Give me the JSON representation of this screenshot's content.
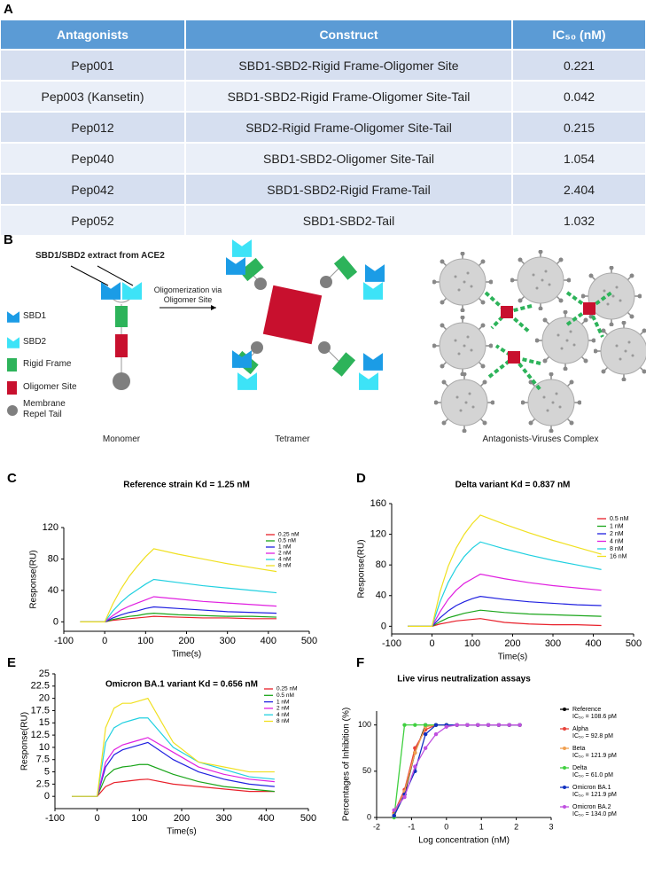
{
  "table": {
    "label": "A",
    "headers": [
      "Antagonists",
      "Construct",
      "IC₅₀ (nM)"
    ],
    "rows": [
      [
        "Pep001",
        "SBD1-SBD2-Rigid Frame-Oligomer Site",
        "0.221"
      ],
      [
        "Pep003 (Kansetin)",
        "SBD1-SBD2-Rigid Frame-Oligomer Site-Tail",
        "0.042"
      ],
      [
        "Pep012",
        "SBD2-Rigid Frame-Oligomer Site-Tail",
        "0.215"
      ],
      [
        "Pep040",
        "SBD1-SBD2-Oligomer Site-Tail",
        "1.054"
      ],
      [
        "Pep042",
        "SBD1-SBD2-Rigid Frame-Tail",
        "2.404"
      ],
      [
        "Pep052",
        "SBD1-SBD2-Tail",
        "1.032"
      ]
    ]
  },
  "diagram": {
    "label": "B",
    "callout": "SBD1/SBD2 extract from ACE2",
    "legend": [
      "SBD1",
      "SBD2",
      "Rigid Frame",
      "Oligomer Site",
      "Membrane Repel Tail"
    ],
    "arrow_label": "Oligomerization via Oligomer Site",
    "captions": [
      "Monomer",
      "Tetramer",
      "Antagonists-Viruses Complex"
    ]
  },
  "chart_data": [
    {
      "type": "line",
      "label": "C",
      "title": "Reference strain Kd = 1.25 nM",
      "x_label": "Time(s)",
      "y_label": "Response(RU)",
      "x": [
        -60,
        0,
        20,
        40,
        60,
        80,
        100,
        120,
        180,
        240,
        300,
        360,
        420
      ],
      "xlim": [
        -100,
        500
      ],
      "xticks": [
        -100,
        0,
        100,
        200,
        300,
        400,
        500
      ],
      "ylim": [
        -12,
        120
      ],
      "yticks": [
        0,
        40,
        80,
        120
      ],
      "series": [
        {
          "name": "0.25 nM",
          "color": "#e8202a",
          "values": [
            0,
            0,
            2,
            3,
            4,
            5,
            6,
            7,
            6,
            5,
            5,
            4,
            4
          ]
        },
        {
          "name": "0.5 nM",
          "color": "#1aa51a",
          "values": [
            0,
            0,
            3,
            5,
            7,
            8,
            10,
            11,
            9,
            8,
            7,
            7,
            6
          ]
        },
        {
          "name": "1 nM",
          "color": "#2020e0",
          "values": [
            0,
            0,
            5,
            9,
            12,
            14,
            17,
            19,
            17,
            15,
            13,
            12,
            11
          ]
        },
        {
          "name": "2 nM",
          "color": "#e020e0",
          "values": [
            0,
            0,
            8,
            15,
            20,
            24,
            28,
            32,
            29,
            26,
            24,
            22,
            20
          ]
        },
        {
          "name": "4 nM",
          "color": "#20d0e0",
          "values": [
            0,
            0,
            14,
            25,
            34,
            41,
            48,
            54,
            50,
            46,
            43,
            40,
            37
          ]
        },
        {
          "name": "8 nM",
          "color": "#f0e020",
          "values": [
            0,
            0,
            23,
            42,
            58,
            71,
            83,
            93,
            86,
            80,
            74,
            69,
            64
          ]
        }
      ]
    },
    {
      "type": "line",
      "label": "D",
      "title": "Delta variant Kd = 0.837 nM",
      "x_label": "Time(s)",
      "y_label": "Response(RU)",
      "x": [
        -60,
        0,
        20,
        40,
        60,
        80,
        100,
        120,
        180,
        240,
        300,
        360,
        420
      ],
      "xlim": [
        -100,
        500
      ],
      "xticks": [
        -100,
        0,
        100,
        200,
        300,
        400,
        500
      ],
      "ylim": [
        -10,
        160
      ],
      "yticks": [
        0,
        40,
        80,
        120,
        160
      ],
      "series": [
        {
          "name": "0.5 nM",
          "color": "#e8202a",
          "values": [
            0,
            0,
            3,
            5,
            7,
            8,
            9,
            10,
            5,
            3,
            2,
            2,
            1
          ]
        },
        {
          "name": "1 nM",
          "color": "#1aa51a",
          "values": [
            0,
            0,
            6,
            11,
            14,
            17,
            19,
            21,
            18,
            16,
            15,
            14,
            13
          ]
        },
        {
          "name": "2 nM",
          "color": "#2020e0",
          "values": [
            0,
            0,
            11,
            20,
            27,
            32,
            36,
            39,
            35,
            32,
            30,
            28,
            27
          ]
        },
        {
          "name": "4 nM",
          "color": "#e020e0",
          "values": [
            0,
            0,
            19,
            35,
            47,
            56,
            62,
            68,
            62,
            57,
            53,
            50,
            47
          ]
        },
        {
          "name": "8 nM",
          "color": "#20d0e0",
          "values": [
            0,
            0,
            32,
            57,
            76,
            91,
            102,
            110,
            101,
            93,
            86,
            80,
            74
          ]
        },
        {
          "name": "16 nM",
          "color": "#f0e020",
          "values": [
            0,
            0,
            45,
            78,
            102,
            120,
            134,
            145,
            133,
            122,
            112,
            103,
            94
          ]
        }
      ]
    },
    {
      "type": "line",
      "label": "E",
      "title": "Omicron BA.1 variant Kd = 0.656 nM",
      "x_label": "Time(s)",
      "y_label": "Response(RU)",
      "x": [
        -60,
        0,
        20,
        40,
        60,
        80,
        100,
        120,
        180,
        240,
        300,
        360,
        420
      ],
      "xlim": [
        -100,
        500
      ],
      "xticks": [
        -100,
        0,
        100,
        200,
        300,
        400,
        500
      ],
      "ylim": [
        -2.5,
        25
      ],
      "yticks": [
        0,
        2.5,
        5,
        7.5,
        10,
        12.5,
        15,
        17.5,
        20,
        22.5,
        25
      ],
      "series": [
        {
          "name": "0.25 nM",
          "color": "#e8202a",
          "values": [
            0,
            0,
            2,
            2.8,
            3,
            3.2,
            3.4,
            3.5,
            2.5,
            2,
            1.5,
            1,
            1
          ]
        },
        {
          "name": "0.5 nM",
          "color": "#1aa51a",
          "values": [
            0,
            0,
            4,
            5.5,
            6,
            6.2,
            6.5,
            6.5,
            4.5,
            3,
            2,
            1.5,
            1
          ]
        },
        {
          "name": "1 nM",
          "color": "#2020e0",
          "values": [
            0,
            0,
            6,
            8.5,
            9.5,
            10,
            10.5,
            11,
            7.5,
            5,
            3.5,
            2.5,
            2
          ]
        },
        {
          "name": "2 nM",
          "color": "#e020e0",
          "values": [
            0,
            0,
            7,
            9.5,
            10.5,
            11,
            11.5,
            12,
            9,
            6,
            4.5,
            3.5,
            3
          ]
        },
        {
          "name": "4 nM",
          "color": "#20d0e0",
          "values": [
            0,
            0,
            11,
            14,
            15,
            15.5,
            16,
            16,
            10,
            7,
            5.5,
            4,
            3.5
          ]
        },
        {
          "name": "8 nM",
          "color": "#f0e020",
          "values": [
            0,
            0,
            14,
            18,
            19,
            19,
            19.5,
            20,
            11,
            7,
            6,
            5,
            5
          ]
        }
      ]
    },
    {
      "type": "line",
      "markers": true,
      "label": "F",
      "title": "Live virus neutralization assays",
      "x_label": "Log concentration (nM)",
      "y_label": "Percentages of Inhibition (%)",
      "x": [
        -1.5,
        -1.2,
        -0.9,
        -0.6,
        -0.3,
        0,
        0.3,
        0.6,
        0.9,
        1.2,
        1.5,
        1.8,
        2.1
      ],
      "xlim": [
        -2,
        3
      ],
      "xticks": [
        -2,
        -1,
        0,
        1,
        2,
        3
      ],
      "ylim": [
        0,
        115
      ],
      "yticks": [
        0,
        50,
        100
      ],
      "series": [
        {
          "name": "Reference",
          "ic50": "IC₅₀ = 108.6 pM",
          "color": "#000000",
          "values": [
            2,
            25,
            70,
            100,
            100,
            100,
            100,
            100,
            100,
            100,
            100,
            100,
            100
          ]
        },
        {
          "name": "Alpha",
          "ic50": "IC₅₀ = 92.8 pM",
          "color": "#e8423a",
          "values": [
            5,
            30,
            75,
            95,
            100,
            100,
            100,
            100,
            100,
            100,
            100,
            100,
            100
          ]
        },
        {
          "name": "Beta",
          "ic50": "IC₅₀ = 121.9 pM",
          "color": "#f0a050",
          "values": [
            3,
            28,
            70,
            98,
            100,
            100,
            100,
            100,
            100,
            100,
            100,
            100,
            100
          ]
        },
        {
          "name": "Delta",
          "ic50": "IC₅₀ = 61.0 pM",
          "color": "#40d040",
          "values": [
            0,
            100,
            100,
            100,
            100,
            100,
            100,
            100,
            100,
            100,
            100,
            100,
            100
          ]
        },
        {
          "name": "Omicron BA.1",
          "ic50": "IC₅₀ = 121.9 pM",
          "color": "#1030c0",
          "values": [
            2,
            25,
            50,
            90,
            100,
            100,
            100,
            100,
            100,
            100,
            100,
            100,
            100
          ]
        },
        {
          "name": "Omicron BA.2",
          "ic50": "IC₅₀ = 134.0 pM",
          "color": "#c050e0",
          "values": [
            8,
            22,
            55,
            75,
            90,
            98,
            100,
            100,
            100,
            100,
            100,
            100,
            100
          ]
        }
      ]
    }
  ]
}
